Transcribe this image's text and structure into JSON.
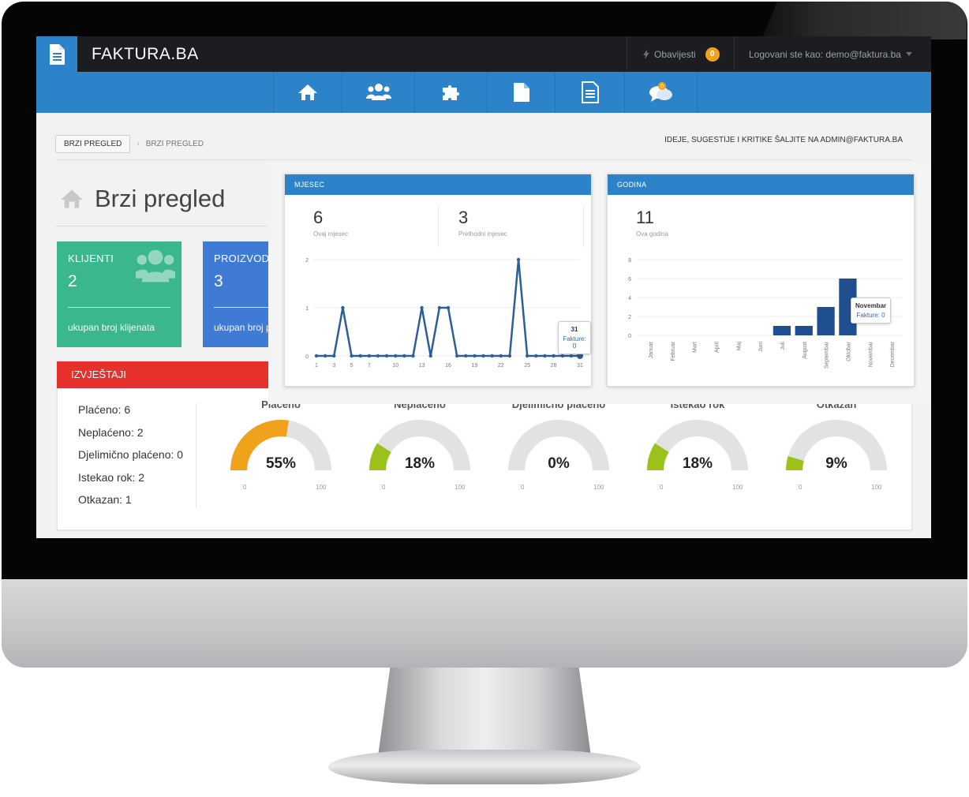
{
  "header": {
    "brand": "FAKTURA.BA",
    "notifications_label": "Obavijesti",
    "notifications_count": "0",
    "user_label": "Logovani ste kao: demo@faktura.ba"
  },
  "nav": {
    "items": [
      {
        "icon": "home-icon"
      },
      {
        "icon": "users-icon"
      },
      {
        "icon": "puzzle-icon"
      },
      {
        "icon": "document-icon"
      },
      {
        "icon": "invoice-icon"
      },
      {
        "icon": "chat-icon",
        "badge": "0"
      }
    ]
  },
  "breadcrumb": {
    "root": "BRZI PREGLED",
    "separator": "›",
    "current": "BRZI PREGLED"
  },
  "feedback": "IDEJE, SUGESTIJE I KRITIKE ŠALJITE NA ADMIN@FAKTURA.BA",
  "page_title": "Brzi pregled",
  "tiles": [
    {
      "label": "KLIJENTI",
      "value": "2",
      "footer": "ukupan broj klijenata"
    },
    {
      "label": "PROIZVODI",
      "value": "3",
      "footer": "ukupan broj proizvoda"
    }
  ],
  "reports": {
    "title": "IZVJEŠTAJI",
    "summary": [
      "Plaćeno: 6",
      "Neplaćeno: 2",
      "Djelimično plaćeno: 0",
      "Istekao rok: 2",
      "Otkazan: 1"
    ],
    "gauges": [
      {
        "title": "Plaćeno",
        "value": 55,
        "label": "55%",
        "color": "#f0a21a",
        "min": "0",
        "max": "100"
      },
      {
        "title": "Neplaćeno",
        "value": 18,
        "label": "18%",
        "color": "#9cc11a",
        "min": "0",
        "max": "100"
      },
      {
        "title": "Djelimično plaćeno",
        "value": 0,
        "label": "0%",
        "color": "#9cc11a",
        "min": "0",
        "max": "100"
      },
      {
        "title": "Istekao rok",
        "value": 18,
        "label": "18%",
        "color": "#9cc11a",
        "min": "0",
        "max": "100"
      },
      {
        "title": "Otkazan",
        "value": 9,
        "label": "9%",
        "color": "#9cc11a",
        "min": "0",
        "max": "100"
      }
    ]
  },
  "month_card": {
    "title": "MJESEC",
    "stats": [
      {
        "value": "6",
        "label": "Ovaj mjesec"
      },
      {
        "value": "3",
        "label": "Prethodni mjesec"
      }
    ],
    "tooltip": {
      "title": "31",
      "text": "Fakture: 0"
    }
  },
  "year_card": {
    "title": "GODINA",
    "stats": [
      {
        "value": "11",
        "label": "Ova godina"
      }
    ],
    "tooltip": {
      "title": "Novembar",
      "text": "Fakture: 0"
    }
  },
  "chart_data": [
    {
      "type": "line",
      "title": "MJESEC",
      "x": [
        1,
        2,
        3,
        4,
        5,
        6,
        7,
        8,
        9,
        10,
        11,
        12,
        13,
        14,
        15,
        16,
        17,
        18,
        19,
        20,
        21,
        22,
        23,
        24,
        25,
        26,
        27,
        28,
        29,
        30,
        31
      ],
      "y": [
        0,
        0,
        0,
        1,
        0,
        0,
        0,
        0,
        0,
        0,
        0,
        0,
        1,
        0,
        1,
        1,
        0,
        0,
        0,
        0,
        0,
        0,
        0,
        2,
        0,
        0,
        0,
        0,
        0,
        0,
        0
      ],
      "x_ticks": [
        "1",
        "3",
        "5",
        "7",
        "10",
        "13",
        "16",
        "19",
        "22",
        "25",
        "28",
        "31"
      ],
      "y_ticks": [
        "0",
        "1",
        "2"
      ],
      "ylim": [
        0,
        2
      ],
      "color": "#2c5e99",
      "grid": true
    },
    {
      "type": "bar",
      "title": "GODINA",
      "categories": [
        "Januar",
        "Februar",
        "Mart",
        "April",
        "Maj",
        "Juni",
        "Juli",
        "August",
        "Septembar",
        "Oktobar",
        "Novembar",
        "Decembar"
      ],
      "values": [
        0,
        0,
        0,
        0,
        0,
        0,
        1,
        1,
        3,
        6,
        0,
        0
      ],
      "y_ticks": [
        "0",
        "2",
        "4",
        "6",
        "8"
      ],
      "ylim": [
        0,
        8
      ],
      "color": "#1f4f8f",
      "grid": true
    }
  ]
}
